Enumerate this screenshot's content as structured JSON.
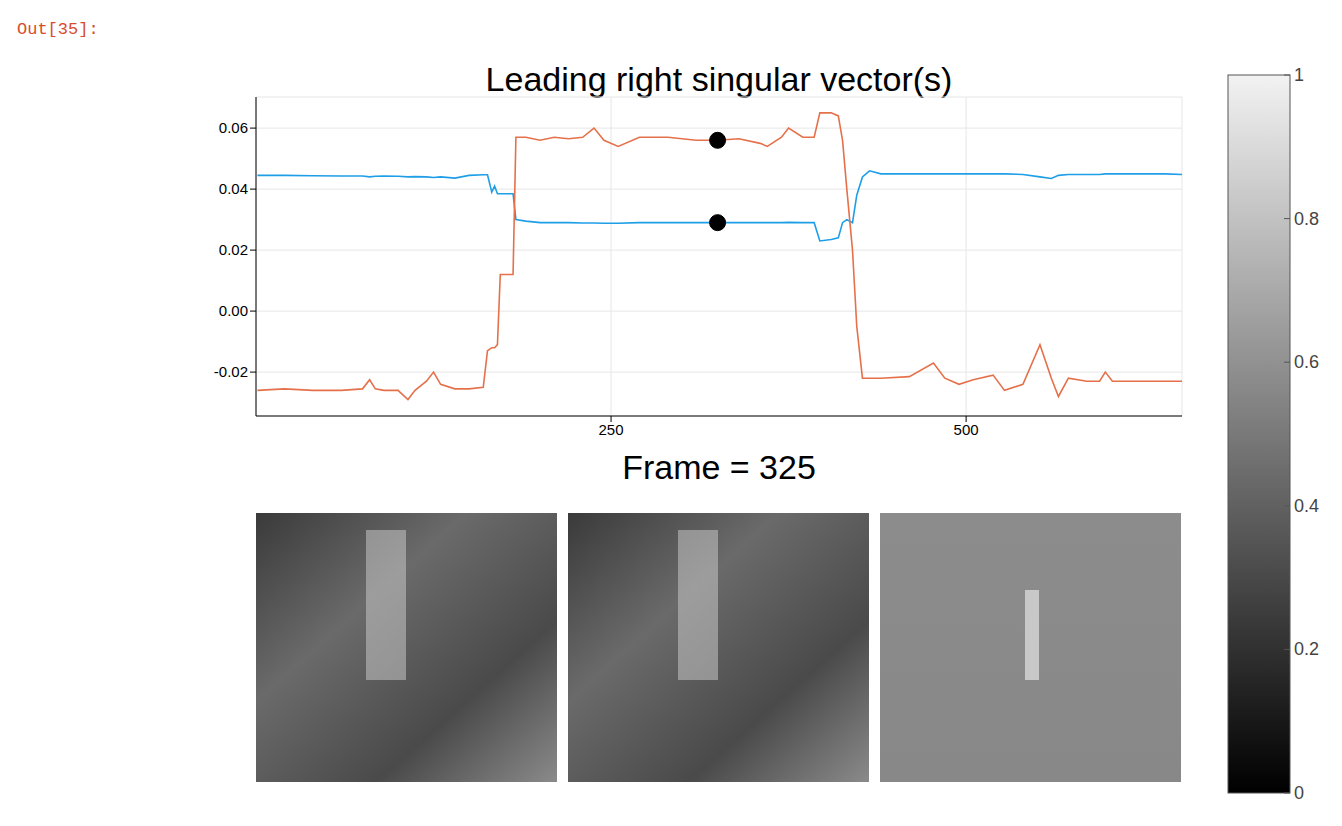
{
  "prompt": "Out[35]:",
  "chart_data": {
    "type": "line",
    "title": "Leading right singular vector(s)",
    "subtitle": "Frame = 325",
    "x": [
      1,
      20,
      40,
      60,
      75,
      80,
      84,
      90,
      100,
      107,
      112,
      120,
      125,
      130,
      140,
      150,
      160,
      163,
      166,
      168,
      170,
      172,
      174,
      178,
      181,
      183,
      190,
      200,
      210,
      220,
      230,
      238,
      245,
      255,
      270,
      290,
      310,
      325,
      340,
      355,
      360,
      370,
      375,
      385,
      393,
      397,
      405,
      410,
      413,
      416,
      420,
      423,
      427,
      432,
      440,
      460,
      477,
      485,
      495,
      505,
      519,
      527,
      540,
      552,
      560,
      565,
      572,
      585,
      594,
      598,
      603,
      620,
      640,
      652
    ],
    "series": [
      {
        "color": "#1f9ee8",
        "values": [
          0.0445,
          0.0445,
          0.0444,
          0.0443,
          0.0443,
          0.044,
          0.0442,
          0.0443,
          0.0442,
          0.044,
          0.0441,
          0.044,
          0.0438,
          0.044,
          0.0436,
          0.0445,
          0.0447,
          0.0447,
          0.039,
          0.041,
          0.0385,
          0.0385,
          0.0385,
          0.0385,
          0.0385,
          0.03,
          0.0295,
          0.029,
          0.029,
          0.029,
          0.0289,
          0.0289,
          0.0288,
          0.0288,
          0.029,
          0.029,
          0.029,
          0.029,
          0.029,
          0.029,
          0.029,
          0.029,
          0.0291,
          0.029,
          0.029,
          0.023,
          0.0235,
          0.024,
          0.029,
          0.03,
          0.029,
          0.038,
          0.044,
          0.046,
          0.045,
          0.045,
          0.045,
          0.045,
          0.045,
          0.045,
          0.045,
          0.045,
          0.0448,
          0.044,
          0.0435,
          0.0445,
          0.0448,
          0.0448,
          0.0448,
          0.045,
          0.045,
          0.045,
          0.045,
          0.0448
        ]
      },
      {
        "color": "#e5714b",
        "values": [
          -0.026,
          -0.0255,
          -0.026,
          -0.026,
          -0.0255,
          -0.0225,
          -0.0255,
          -0.026,
          -0.026,
          -0.029,
          -0.026,
          -0.023,
          -0.02,
          -0.024,
          -0.0255,
          -0.0255,
          -0.025,
          -0.013,
          -0.012,
          -0.012,
          -0.011,
          0.012,
          0.012,
          0.012,
          0.012,
          0.057,
          0.057,
          0.056,
          0.057,
          0.0565,
          0.057,
          0.06,
          0.056,
          0.054,
          0.057,
          0.057,
          0.056,
          0.056,
          0.0565,
          0.055,
          0.054,
          0.057,
          0.06,
          0.057,
          0.057,
          0.065,
          0.065,
          0.064,
          0.056,
          0.04,
          0.02,
          -0.005,
          -0.022,
          -0.022,
          -0.022,
          -0.0215,
          -0.017,
          -0.022,
          -0.024,
          -0.0225,
          -0.021,
          -0.026,
          -0.024,
          -0.011,
          -0.022,
          -0.028,
          -0.022,
          -0.023,
          -0.023,
          -0.02,
          -0.023,
          -0.023,
          -0.023,
          -0.023
        ]
      },
      {
        "type": "scatter",
        "marker": "circle",
        "color": "#000000",
        "x": [
          325
        ],
        "values": [
          0.056
        ]
      },
      {
        "type": "scatter",
        "marker": "circle",
        "color": "#000000",
        "x": [
          325
        ],
        "values": [
          0.029
        ]
      }
    ],
    "xlim": [
      0,
      652
    ],
    "xticks": [
      250,
      500
    ],
    "ylim": [
      -0.0344,
      0.0702
    ],
    "yticks": [
      -0.02,
      {
        "value": 0,
        "label": "0.00"
      },
      0.02,
      0.04,
      0.06
    ],
    "grid": true,
    "colorbar": {
      "range": [
        0,
        1
      ],
      "ticks": [
        0,
        0.2,
        0.4,
        0.6,
        0.8,
        1
      ]
    }
  }
}
